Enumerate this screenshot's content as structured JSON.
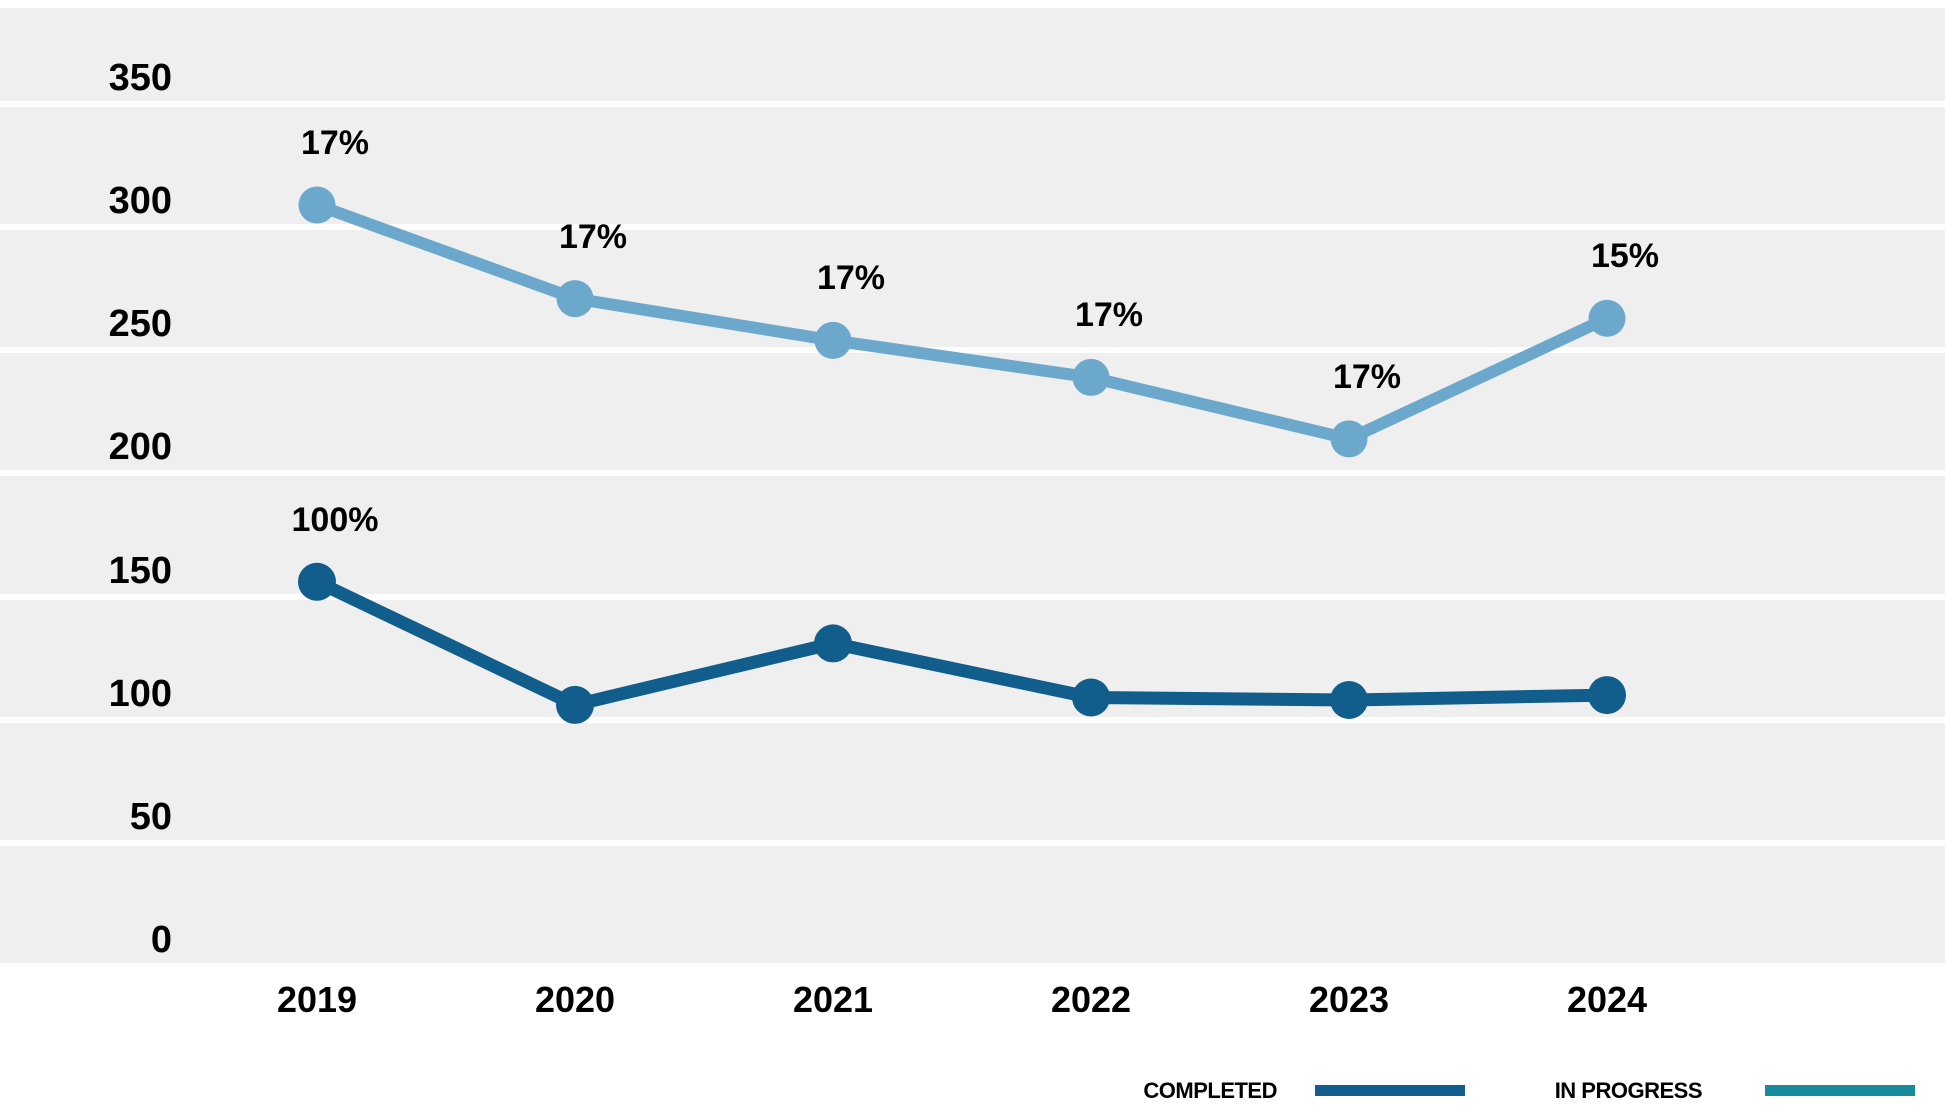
{
  "chart_data": {
    "type": "line",
    "categories": [
      "2019",
      "2020",
      "2021",
      "2022",
      "2023",
      "2024"
    ],
    "y_ticks": [
      "0",
      "50",
      "100",
      "150",
      "200",
      "250",
      "300",
      "350"
    ],
    "ylim": [
      0,
      350
    ],
    "grid": "horizontal",
    "legend_position": "bottom-right",
    "series": [
      {
        "name": "COMPLETED",
        "line_color": "#115D8C",
        "legend_swatch_color": "#115D8C",
        "values": [
          156,
          106,
          131,
          109,
          108,
          110
        ],
        "point_labels": [
          "100%",
          "",
          "",
          "",
          "",
          ""
        ]
      },
      {
        "name": "IN PROGRESS",
        "line_color": "#6BA8CC",
        "legend_swatch_color": "#188C9C",
        "values": [
          309,
          271,
          254,
          239,
          214,
          263
        ],
        "point_labels": [
          "17%",
          "17%",
          "17%",
          "17%",
          "17%",
          "15%"
        ]
      }
    ]
  },
  "colors": {
    "page_background": "#FFFFFF",
    "plot_background": "#EFEFEF",
    "gridline": "#FFFFFF",
    "label_text": "#000000"
  }
}
